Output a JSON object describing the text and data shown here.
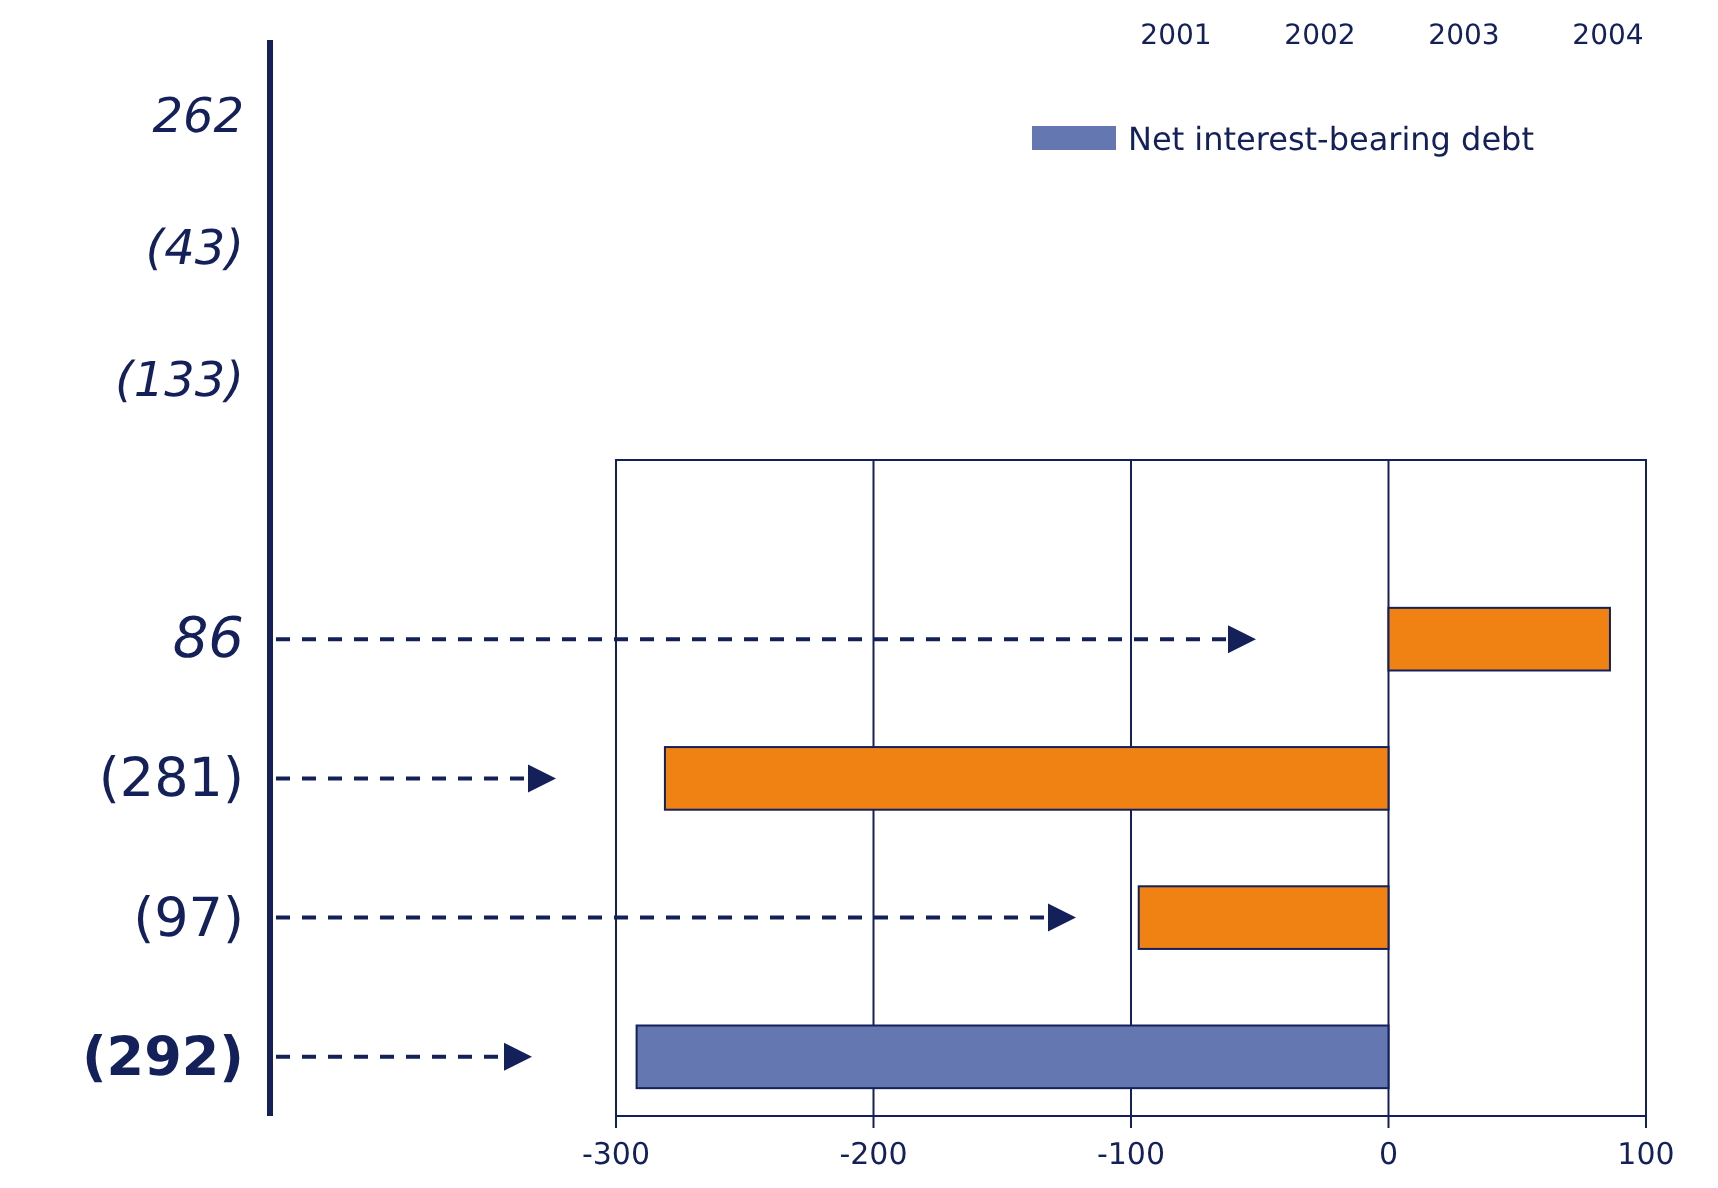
{
  "chart_data": {
    "type": "bar",
    "orientation": "horizontal",
    "categories": [
      "86",
      "(281)",
      "(97)",
      "(292)"
    ],
    "series": [
      {
        "name": "Net interest-bearing debt",
        "color": "#6577b0",
        "values": [
          null,
          null,
          null,
          -292
        ]
      },
      {
        "color": "#f08214",
        "values": [
          86,
          -281,
          -97,
          null
        ]
      }
    ],
    "xlim": [
      -300,
      100
    ],
    "xticks": [
      -300,
      -200,
      -100,
      0,
      100
    ],
    "grid": "x",
    "legend": "top right",
    "annotations": [
      "262",
      "(43)",
      "(133)",
      "2001",
      "2002",
      "2003",
      "2004"
    ]
  }
}
